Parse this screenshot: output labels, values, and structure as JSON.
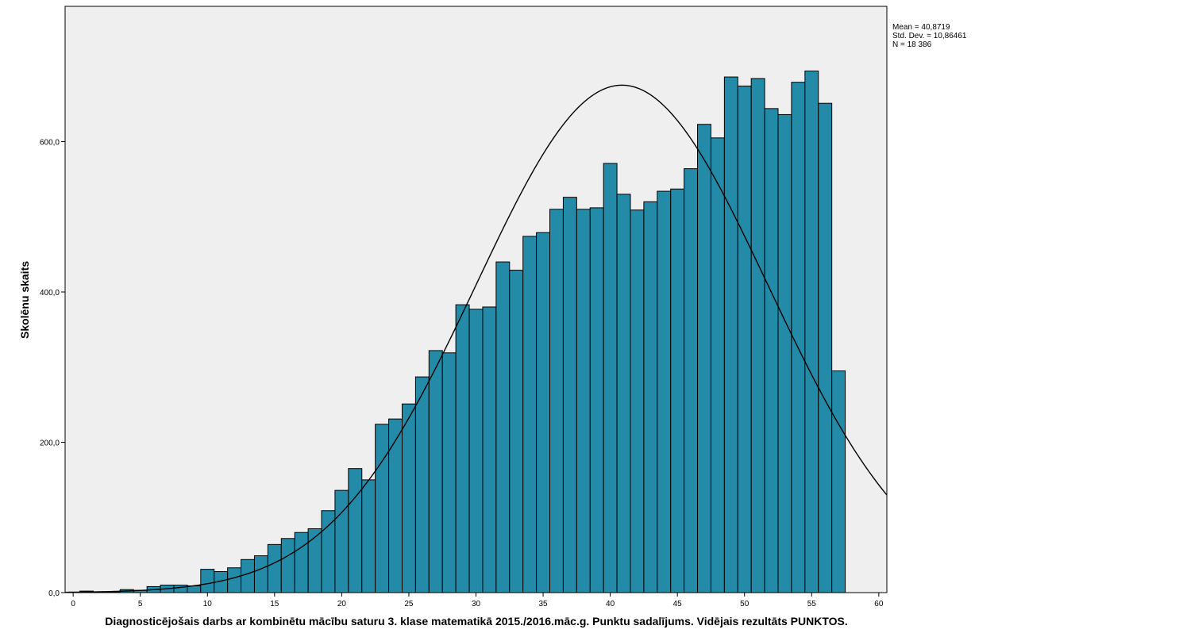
{
  "chart_data": {
    "type": "bar",
    "subtype": "histogram",
    "xlabel": "Diagnosticējošais darbs ar kombinētu mācību saturu 3. klase matematikā 2015./2016.māc.g. Punktu sadalījums. Vidējais rezultāts PUNKTOS.",
    "ylabel": "Skolēnu skaits",
    "xlim": [
      -0.6,
      60.6
    ],
    "ylim": [
      0,
      780
    ],
    "x_ticks": [
      {
        "value": 0,
        "label": "0"
      },
      {
        "value": 5,
        "label": "5"
      },
      {
        "value": 10,
        "label": "10"
      },
      {
        "value": 15,
        "label": "15"
      },
      {
        "value": 20,
        "label": "20"
      },
      {
        "value": 25,
        "label": "25"
      },
      {
        "value": 30,
        "label": "30"
      },
      {
        "value": 35,
        "label": "35"
      },
      {
        "value": 40,
        "label": "40"
      },
      {
        "value": 45,
        "label": "45"
      },
      {
        "value": 50,
        "label": "50"
      },
      {
        "value": 55,
        "label": "55"
      },
      {
        "value": 60,
        "label": "60"
      }
    ],
    "y_ticks": [
      {
        "value": 0,
        "label": "0,0"
      },
      {
        "value": 200,
        "label": "200,0"
      },
      {
        "value": 400,
        "label": "400,0"
      },
      {
        "value": 600,
        "label": "600,0"
      }
    ],
    "bin_width": 1,
    "bins_x": [
      1,
      2,
      3,
      4,
      5,
      6,
      7,
      8,
      9,
      10,
      11,
      12,
      13,
      14,
      15,
      16,
      17,
      18,
      19,
      20,
      21,
      22,
      23,
      24,
      25,
      26,
      27,
      28,
      29,
      30,
      31,
      32,
      33,
      34,
      35,
      36,
      37,
      38,
      39,
      40,
      41,
      42,
      43,
      44,
      45,
      46,
      47,
      48,
      49,
      50,
      51,
      52,
      53,
      54,
      55,
      56,
      57
    ],
    "values": [
      2,
      1,
      1,
      4,
      3,
      8,
      10,
      10,
      9,
      31,
      28,
      33,
      44,
      49,
      64,
      72,
      80,
      85,
      109,
      136,
      165,
      150,
      224,
      231,
      251,
      287,
      322,
      319,
      383,
      377,
      380,
      440,
      429,
      474,
      479,
      510,
      526,
      510,
      512,
      571,
      530,
      509,
      520,
      534,
      537,
      564,
      623,
      605,
      686,
      674,
      684,
      644,
      636,
      679,
      694,
      651,
      295
    ],
    "bar_color": "#238ba8",
    "background_color": "#efefef",
    "normal_curve": {
      "mean": 40.8719,
      "std": 10.86461,
      "n": 18386,
      "bin_width": 1
    },
    "legend": [
      "Mean = 40,8719",
      "Std. Dev. = 10,86461",
      "N = 18 386"
    ]
  }
}
